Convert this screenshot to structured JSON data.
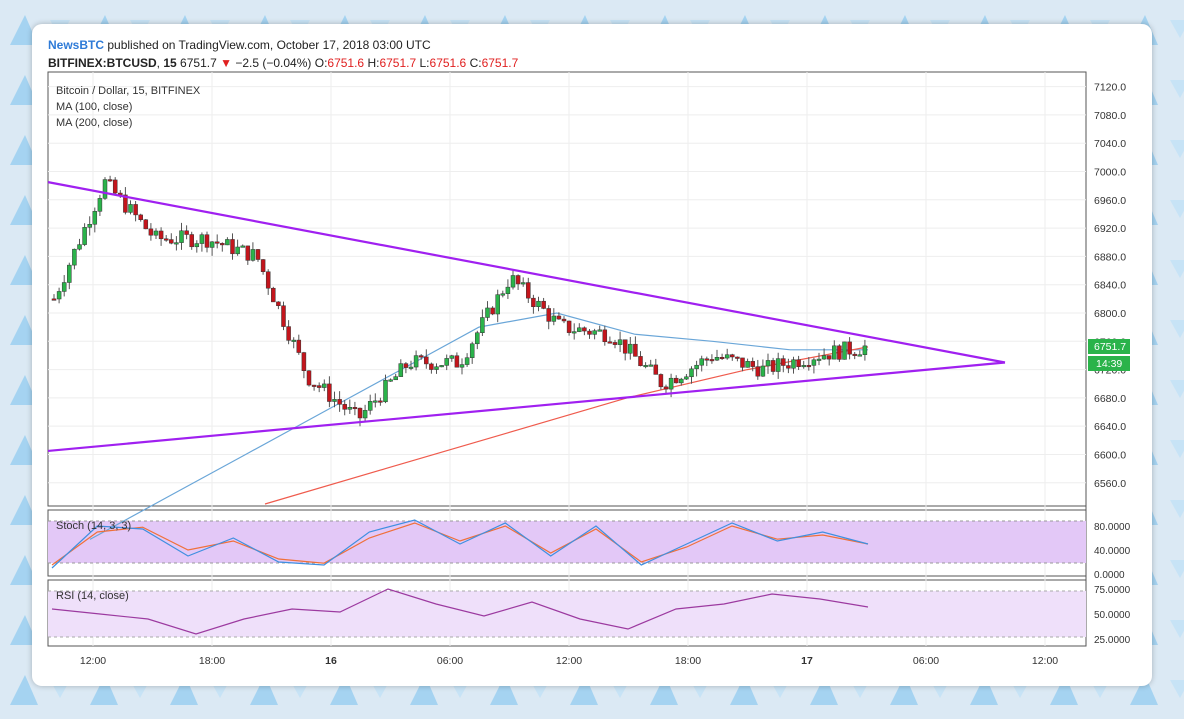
{
  "header": {
    "source": "NewsBTC",
    "publish_text": "published on TradingView.com, October 17, 2018 03:00 UTC",
    "symbol": "BITFINEX:BTCUSD",
    "interval": "15",
    "last": "6751.7",
    "change": "−2.5 (−0.04%)",
    "open_label": "O:",
    "open": "6751.6",
    "high_label": "H:",
    "high": "6751.7",
    "low_label": "L:",
    "low": "6751.6",
    "close_label": "C:",
    "close": "6751.7"
  },
  "legend": {
    "main": "Bitcoin / Dollar, 15, BITFINEX",
    "ma100": "MA (100, close)",
    "ma200": "MA (200, close)",
    "stoch": "Stoch (14, 3, 3)",
    "rsi": "RSI (14, close)"
  },
  "price_badge": "6751.7",
  "time_badge": "14:39",
  "x_labels": [
    "12:00",
    "18:00",
    "16",
    "06:00",
    "12:00",
    "18:00",
    "17",
    "06:00",
    "12:00"
  ],
  "colors": {
    "up": "#2ab34a",
    "down": "#c4151c",
    "trendline": "#a020f0",
    "ma100": "#6aa6d8",
    "ma200": "#ef5b4d",
    "stoch_k": "#3f8fe0",
    "stoch_d": "#f0703a",
    "rsi": "#9c3aa0",
    "band": "#e3c8f7"
  },
  "chart_data": {
    "type": "line",
    "price_axis": {
      "range": [
        6530,
        7135
      ],
      "ticks": [
        7120,
        7080,
        7040,
        7000,
        6960,
        6920,
        6880,
        6840,
        6800,
        6760,
        6720,
        6680,
        6640,
        6600,
        6560
      ]
    },
    "stoch_axis": {
      "range": [
        0,
        100
      ],
      "ticks": [
        80,
        40,
        0
      ]
    },
    "rsi_axis": {
      "range": [
        20,
        80
      ],
      "ticks": [
        75,
        50,
        25
      ]
    },
    "x_time_points": [
      0,
      6,
      12,
      18,
      24,
      30,
      36,
      42,
      48,
      54,
      60,
      66,
      72,
      78,
      84
    ],
    "price_series": [
      6820,
      6985,
      6905,
      6905,
      6880,
      6710,
      6650,
      6730,
      6730,
      6850,
      6780,
      6770,
      6700,
      6740,
      6720,
      6740,
      6752
    ],
    "ma100": [
      6480,
      6540,
      6600,
      6660,
      6720,
      6780,
      6800,
      6770,
      6760,
      6748,
      6748
    ],
    "ma200": [
      6530,
      6580,
      6630,
      6680,
      6720,
      6752
    ],
    "upper_trendline": [
      [
        0,
        6985
      ],
      [
        96,
        6730
      ]
    ],
    "lower_trendline": [
      [
        0,
        6605
      ],
      [
        96,
        6730
      ]
    ],
    "stoch_k": [
      10,
      80,
      75,
      30,
      60,
      20,
      15,
      70,
      90,
      50,
      85,
      30,
      80,
      15,
      50,
      85,
      55,
      70,
      50
    ],
    "stoch_d": [
      15,
      70,
      78,
      40,
      55,
      25,
      18,
      60,
      85,
      55,
      80,
      35,
      75,
      20,
      45,
      80,
      58,
      65,
      50
    ],
    "rsi": [
      55,
      50,
      45,
      30,
      45,
      55,
      52,
      75,
      60,
      48,
      62,
      45,
      35,
      55,
      60,
      70,
      65,
      57
    ]
  }
}
